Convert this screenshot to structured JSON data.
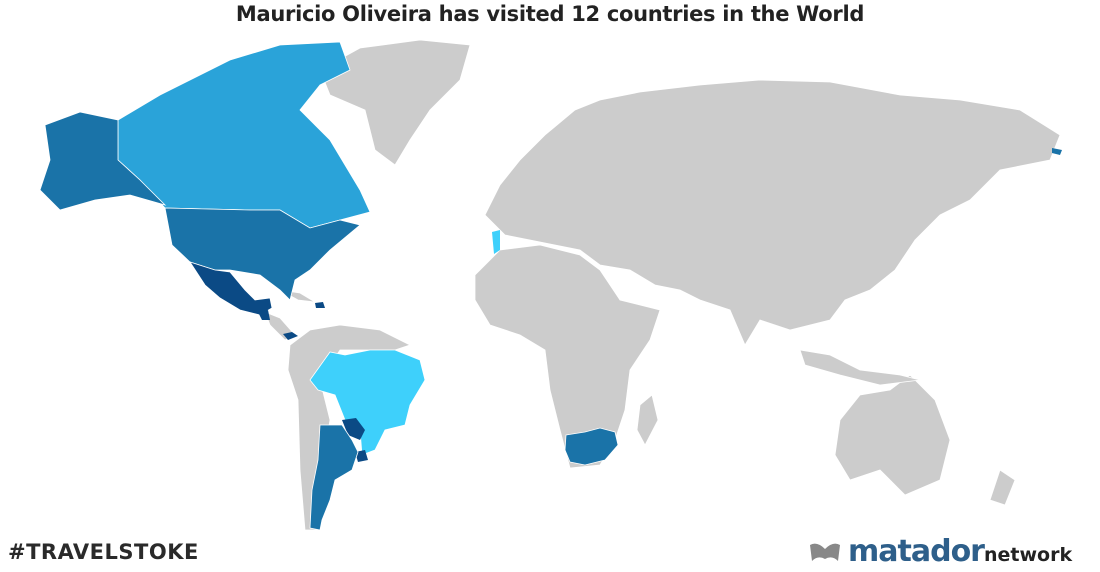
{
  "title": "Mauricio Oliveira has visited 12 countries in the World",
  "hashtag": "#TRAVELSTOKE",
  "logo": {
    "brand": "matador",
    "suffix": "network"
  },
  "colors": {
    "unvisited": "#cccccc",
    "ocean": "#ffffff",
    "light": "#2aa3d9",
    "medium": "#1a73a8",
    "dark": "#0b4a85",
    "bright": "#3ed0fb"
  },
  "visited_countries": [
    {
      "name": "Canada",
      "color": "#2aa3d9"
    },
    {
      "name": "United States",
      "color": "#1a73a8"
    },
    {
      "name": "Mexico",
      "color": "#0b4a85"
    },
    {
      "name": "Guatemala",
      "color": "#0b4a85"
    },
    {
      "name": "Dominican Republic",
      "color": "#0b4a85"
    },
    {
      "name": "Panama",
      "color": "#0b4a85"
    },
    {
      "name": "Brazil",
      "color": "#3ed0fb"
    },
    {
      "name": "Paraguay",
      "color": "#0b4a85"
    },
    {
      "name": "Uruguay",
      "color": "#0b4a85"
    },
    {
      "name": "Argentina",
      "color": "#1a73a8"
    },
    {
      "name": "Portugal",
      "color": "#3ed0fb"
    },
    {
      "name": "South Africa",
      "color": "#1a73a8"
    }
  ]
}
